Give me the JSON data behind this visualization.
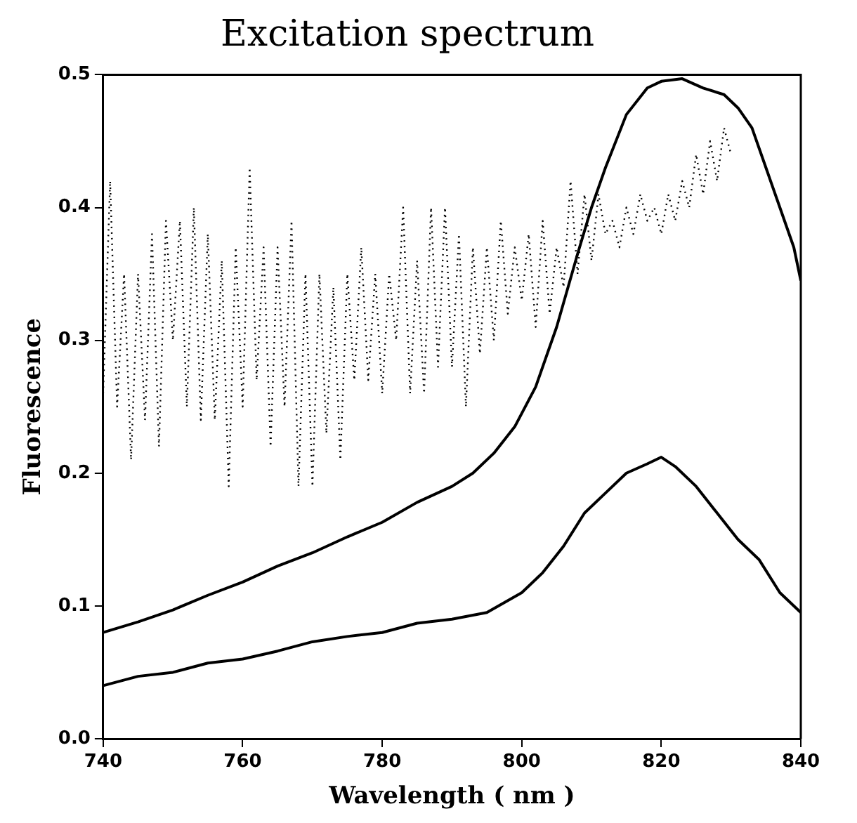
{
  "chart_data": {
    "type": "line",
    "title": "Excitation spectrum",
    "xlabel": "Wavelength ( nm )",
    "ylabel": "Fluorescence",
    "xlim": [
      740,
      840
    ],
    "xticks": [
      740,
      760,
      780,
      800,
      820,
      840
    ],
    "ylim": [
      0,
      0.5
    ],
    "yticks": [
      {
        "value": 0,
        "label": "0.0"
      },
      0.1,
      0.2,
      0.3,
      0.4,
      0.5
    ],
    "grid": false,
    "legend": false,
    "marker": "none",
    "series": [
      {
        "color": "#000000",
        "line_style": "solid",
        "x": [
          740,
          745,
          750,
          755,
          760,
          765,
          770,
          775,
          780,
          785,
          790,
          793,
          796,
          799,
          802,
          805,
          808,
          810,
          812,
          815,
          818,
          820,
          823,
          826,
          829,
          831,
          833,
          835,
          837,
          839,
          840
        ],
        "values": [
          0.08,
          0.088,
          0.097,
          0.108,
          0.118,
          0.13,
          0.14,
          0.152,
          0.163,
          0.178,
          0.19,
          0.2,
          0.215,
          0.235,
          0.265,
          0.31,
          0.365,
          0.4,
          0.43,
          0.47,
          0.49,
          0.495,
          0.497,
          0.49,
          0.485,
          0.475,
          0.46,
          0.43,
          0.4,
          0.37,
          0.345
        ]
      },
      {
        "color": "#000000",
        "line_style": "solid",
        "x": [
          740,
          745,
          750,
          755,
          760,
          765,
          770,
          775,
          780,
          785,
          790,
          795,
          800,
          803,
          806,
          809,
          812,
          815,
          818,
          820,
          822,
          825,
          828,
          831,
          834,
          837,
          840
        ],
        "values": [
          0.04,
          0.047,
          0.05,
          0.057,
          0.06,
          0.066,
          0.073,
          0.077,
          0.08,
          0.087,
          0.09,
          0.095,
          0.11,
          0.125,
          0.145,
          0.17,
          0.185,
          0.2,
          0.207,
          0.212,
          0.205,
          0.19,
          0.17,
          0.15,
          0.135,
          0.11,
          0.095
        ]
      },
      {
        "color": "#000000",
        "line_style": "dotted",
        "x": [
          740,
          741,
          742,
          743,
          744,
          745,
          746,
          747,
          748,
          749,
          750,
          751,
          752,
          753,
          754,
          755,
          756,
          757,
          758,
          759,
          760,
          761,
          762,
          763,
          764,
          765,
          766,
          767,
          768,
          769,
          770,
          771,
          772,
          773,
          774,
          775,
          776,
          777,
          778,
          779,
          780,
          781,
          782,
          783,
          784,
          785,
          786,
          787,
          788,
          789,
          790,
          791,
          792,
          793,
          794,
          795,
          796,
          797,
          798,
          799,
          800,
          801,
          802,
          803,
          804,
          805,
          806,
          807,
          808,
          809,
          810,
          811,
          812,
          813,
          814,
          815,
          816,
          817,
          818,
          819,
          820,
          821,
          822,
          823,
          824,
          825,
          826,
          827,
          828,
          829,
          830
        ],
        "values": [
          0.26,
          0.42,
          0.25,
          0.35,
          0.21,
          0.35,
          0.24,
          0.38,
          0.22,
          0.39,
          0.3,
          0.39,
          0.25,
          0.4,
          0.24,
          0.38,
          0.24,
          0.36,
          0.19,
          0.37,
          0.25,
          0.43,
          0.27,
          0.37,
          0.22,
          0.37,
          0.25,
          0.39,
          0.19,
          0.35,
          0.19,
          0.35,
          0.23,
          0.34,
          0.21,
          0.35,
          0.27,
          0.37,
          0.27,
          0.35,
          0.26,
          0.35,
          0.3,
          0.4,
          0.26,
          0.36,
          0.26,
          0.4,
          0.28,
          0.4,
          0.28,
          0.38,
          0.25,
          0.37,
          0.29,
          0.37,
          0.3,
          0.39,
          0.32,
          0.37,
          0.33,
          0.38,
          0.31,
          0.39,
          0.32,
          0.37,
          0.34,
          0.42,
          0.35,
          0.41,
          0.36,
          0.41,
          0.38,
          0.39,
          0.37,
          0.4,
          0.38,
          0.41,
          0.39,
          0.4,
          0.38,
          0.41,
          0.39,
          0.42,
          0.4,
          0.44,
          0.41,
          0.45,
          0.42,
          0.46,
          0.44
        ]
      }
    ]
  }
}
